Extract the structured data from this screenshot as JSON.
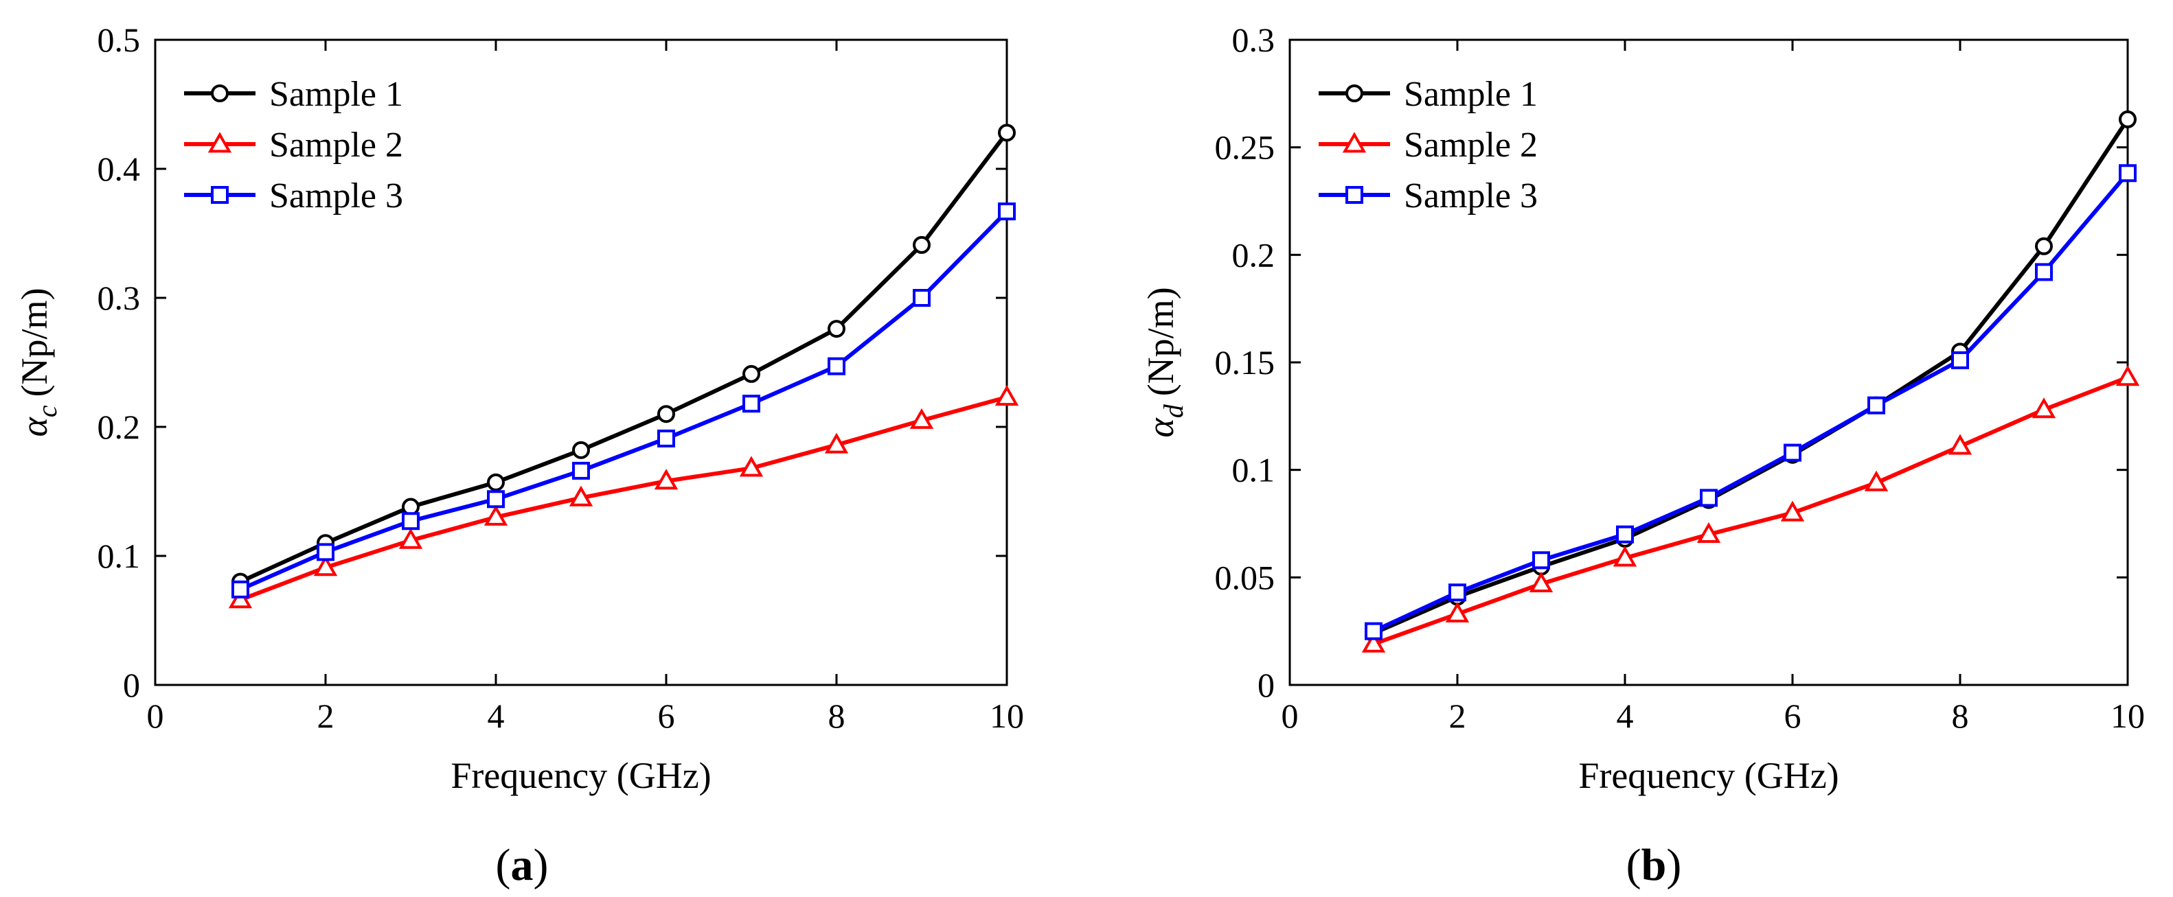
{
  "colors": {
    "sample1": "#000000",
    "sample2": "#ff0000",
    "sample3": "#0000ff",
    "axis": "#000000",
    "background": "#ffffff"
  },
  "chart_data": [
    {
      "type": "line",
      "panel_label": "a",
      "title": "",
      "xlabel": "Frequency (GHz)",
      "ylabel_symbol": "α",
      "ylabel_subscript": "c",
      "ylabel_unit": "(Np/m)",
      "xlim": [
        0,
        10
      ],
      "ylim": [
        0,
        0.5
      ],
      "xticks": [
        0,
        2,
        4,
        6,
        8,
        10
      ],
      "yticks": [
        0,
        0.1,
        0.2,
        0.3,
        0.4,
        0.5
      ],
      "xtick_labels": [
        "0",
        "2",
        "4",
        "6",
        "8",
        "10"
      ],
      "ytick_labels": [
        "0",
        "0.1",
        "0.2",
        "0.3",
        "0.4",
        "0.5"
      ],
      "grid": false,
      "legend_position": "top-left",
      "x": [
        1,
        2,
        3,
        4,
        5,
        6,
        7,
        8,
        9,
        10
      ],
      "series": [
        {
          "name": "Sample 1",
          "marker": "circle",
          "color": "#000000",
          "values": [
            0.08,
            0.11,
            0.138,
            0.157,
            0.182,
            0.21,
            0.241,
            0.276,
            0.341,
            0.428
          ]
        },
        {
          "name": "Sample 2",
          "marker": "triangle",
          "color": "#ff0000",
          "values": [
            0.066,
            0.091,
            0.112,
            0.13,
            0.145,
            0.158,
            0.168,
            0.186,
            0.205,
            0.223
          ]
        },
        {
          "name": "Sample 3",
          "marker": "square",
          "color": "#0000ff",
          "values": [
            0.074,
            0.103,
            0.127,
            0.144,
            0.166,
            0.191,
            0.218,
            0.247,
            0.3,
            0.367
          ]
        }
      ]
    },
    {
      "type": "line",
      "panel_label": "b",
      "title": "",
      "xlabel": "Frequency (GHz)",
      "ylabel_symbol": "α",
      "ylabel_subscript": "d",
      "ylabel_unit": "(Np/m)",
      "xlim": [
        0,
        10
      ],
      "ylim": [
        0,
        0.3
      ],
      "xticks": [
        0,
        2,
        4,
        6,
        8,
        10
      ],
      "yticks": [
        0,
        0.05,
        0.1,
        0.15,
        0.2,
        0.25,
        0.3
      ],
      "xtick_labels": [
        "0",
        "2",
        "4",
        "6",
        "8",
        "10"
      ],
      "ytick_labels": [
        "0",
        "0.05",
        "0.1",
        "0.15",
        "0.2",
        "0.25",
        "0.3"
      ],
      "grid": false,
      "legend_position": "top-left",
      "x": [
        1,
        2,
        3,
        4,
        5,
        6,
        7,
        8,
        9,
        10
      ],
      "series": [
        {
          "name": "Sample 1",
          "marker": "circle",
          "color": "#000000",
          "values": [
            0.024,
            0.041,
            0.055,
            0.068,
            0.086,
            0.107,
            0.13,
            0.155,
            0.204,
            0.263
          ]
        },
        {
          "name": "Sample 2",
          "marker": "triangle",
          "color": "#ff0000",
          "values": [
            0.019,
            0.033,
            0.047,
            0.059,
            0.07,
            0.08,
            0.094,
            0.111,
            0.128,
            0.143
          ]
        },
        {
          "name": "Sample 3",
          "marker": "square",
          "color": "#0000ff",
          "values": [
            0.025,
            0.043,
            0.058,
            0.07,
            0.087,
            0.108,
            0.13,
            0.151,
            0.192,
            0.238
          ]
        }
      ]
    }
  ]
}
